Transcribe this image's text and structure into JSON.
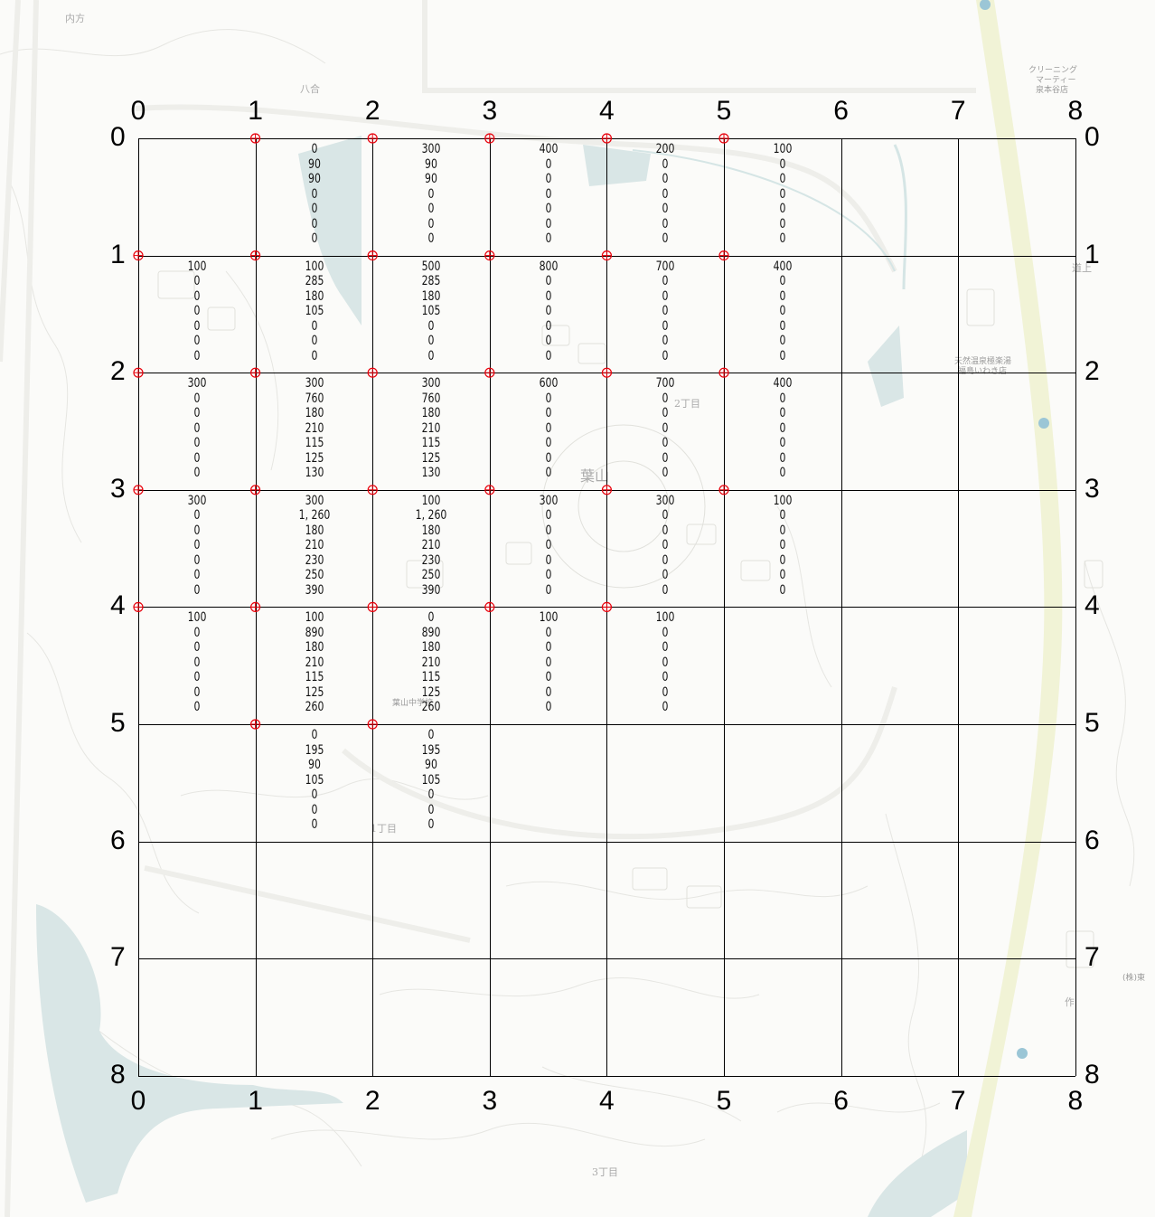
{
  "map_labels": {
    "place_uchikata": "内方",
    "place_hachiai": "八合",
    "place_hayama": "葉山",
    "chome_2": "2丁目",
    "chome_1": "1丁目",
    "chome_3": "3丁目",
    "shop_cleaning": [
      "クリーニング",
      "マーティー",
      "泉本谷店"
    ],
    "onsen": [
      "天然温泉極楽湯",
      "福島いわき店"
    ],
    "company": "(株)東",
    "place_right": "道上",
    "saku": "作",
    "school": "葉山中学校"
  },
  "axes": {
    "top": [
      "0",
      "1",
      "2",
      "3",
      "4",
      "5",
      "6",
      "7",
      "8"
    ],
    "bottom": [
      "0",
      "1",
      "2",
      "3",
      "4",
      "5",
      "6",
      "7",
      "8"
    ],
    "left": [
      "0",
      "1",
      "2",
      "3",
      "4",
      "5",
      "6",
      "7",
      "8"
    ],
    "right": [
      "0",
      "1",
      "2",
      "3",
      "4",
      "5",
      "6",
      "7",
      "8"
    ]
  },
  "grid": {
    "columns": 8,
    "rows": 8,
    "line_color": "#000000",
    "marker_color": "#e8000b",
    "markers": [
      [
        1,
        0
      ],
      [
        2,
        0
      ],
      [
        3,
        0
      ],
      [
        4,
        0
      ],
      [
        5,
        0
      ],
      [
        0,
        1
      ],
      [
        1,
        1
      ],
      [
        2,
        1
      ],
      [
        3,
        1
      ],
      [
        4,
        1
      ],
      [
        5,
        1
      ],
      [
        0,
        2
      ],
      [
        1,
        2
      ],
      [
        2,
        2
      ],
      [
        3,
        2
      ],
      [
        4,
        2
      ],
      [
        5,
        2
      ],
      [
        0,
        3
      ],
      [
        1,
        3
      ],
      [
        2,
        3
      ],
      [
        3,
        3
      ],
      [
        4,
        3
      ],
      [
        5,
        3
      ],
      [
        0,
        4
      ],
      [
        1,
        4
      ],
      [
        2,
        4
      ],
      [
        3,
        4
      ],
      [
        4,
        4
      ],
      [
        1,
        5
      ],
      [
        2,
        5
      ]
    ]
  },
  "cells": [
    {
      "col": 1,
      "row": 0,
      "values": [
        "0",
        "90",
        "90",
        "0",
        "0",
        "0",
        "0"
      ]
    },
    {
      "col": 2,
      "row": 0,
      "values": [
        "300",
        "90",
        "90",
        "0",
        "0",
        "0",
        "0"
      ]
    },
    {
      "col": 3,
      "row": 0,
      "values": [
        "400",
        "0",
        "0",
        "0",
        "0",
        "0",
        "0"
      ]
    },
    {
      "col": 4,
      "row": 0,
      "values": [
        "200",
        "0",
        "0",
        "0",
        "0",
        "0",
        "0"
      ]
    },
    {
      "col": 5,
      "row": 0,
      "values": [
        "100",
        "0",
        "0",
        "0",
        "0",
        "0",
        "0"
      ]
    },
    {
      "col": 0,
      "row": 1,
      "values": [
        "100",
        "0",
        "0",
        "0",
        "0",
        "0",
        "0"
      ]
    },
    {
      "col": 1,
      "row": 1,
      "values": [
        "100",
        "285",
        "180",
        "105",
        "0",
        "0",
        "0"
      ]
    },
    {
      "col": 2,
      "row": 1,
      "values": [
        "500",
        "285",
        "180",
        "105",
        "0",
        "0",
        "0"
      ]
    },
    {
      "col": 3,
      "row": 1,
      "values": [
        "800",
        "0",
        "0",
        "0",
        "0",
        "0",
        "0"
      ]
    },
    {
      "col": 4,
      "row": 1,
      "values": [
        "700",
        "0",
        "0",
        "0",
        "0",
        "0",
        "0"
      ]
    },
    {
      "col": 5,
      "row": 1,
      "values": [
        "400",
        "0",
        "0",
        "0",
        "0",
        "0",
        "0"
      ]
    },
    {
      "col": 0,
      "row": 2,
      "values": [
        "300",
        "0",
        "0",
        "0",
        "0",
        "0",
        "0"
      ]
    },
    {
      "col": 1,
      "row": 2,
      "values": [
        "300",
        "760",
        "180",
        "210",
        "115",
        "125",
        "130"
      ]
    },
    {
      "col": 2,
      "row": 2,
      "values": [
        "300",
        "760",
        "180",
        "210",
        "115",
        "125",
        "130"
      ]
    },
    {
      "col": 3,
      "row": 2,
      "values": [
        "600",
        "0",
        "0",
        "0",
        "0",
        "0",
        "0"
      ]
    },
    {
      "col": 4,
      "row": 2,
      "values": [
        "700",
        "0",
        "0",
        "0",
        "0",
        "0",
        "0"
      ]
    },
    {
      "col": 5,
      "row": 2,
      "values": [
        "400",
        "0",
        "0",
        "0",
        "0",
        "0",
        "0"
      ]
    },
    {
      "col": 0,
      "row": 3,
      "values": [
        "300",
        "0",
        "0",
        "0",
        "0",
        "0",
        "0"
      ]
    },
    {
      "col": 1,
      "row": 3,
      "values": [
        "300",
        "1, 260",
        "180",
        "210",
        "230",
        "250",
        "390"
      ]
    },
    {
      "col": 2,
      "row": 3,
      "values": [
        "100",
        "1, 260",
        "180",
        "210",
        "230",
        "250",
        "390"
      ]
    },
    {
      "col": 3,
      "row": 3,
      "values": [
        "300",
        "0",
        "0",
        "0",
        "0",
        "0",
        "0"
      ]
    },
    {
      "col": 4,
      "row": 3,
      "values": [
        "300",
        "0",
        "0",
        "0",
        "0",
        "0",
        "0"
      ]
    },
    {
      "col": 5,
      "row": 3,
      "values": [
        "100",
        "0",
        "0",
        "0",
        "0",
        "0",
        "0"
      ]
    },
    {
      "col": 0,
      "row": 4,
      "values": [
        "100",
        "0",
        "0",
        "0",
        "0",
        "0",
        "0"
      ]
    },
    {
      "col": 1,
      "row": 4,
      "values": [
        "100",
        "890",
        "180",
        "210",
        "115",
        "125",
        "260"
      ]
    },
    {
      "col": 2,
      "row": 4,
      "values": [
        "0",
        "890",
        "180",
        "210",
        "115",
        "125",
        "260"
      ]
    },
    {
      "col": 3,
      "row": 4,
      "values": [
        "100",
        "0",
        "0",
        "0",
        "0",
        "0",
        "0"
      ]
    },
    {
      "col": 4,
      "row": 4,
      "values": [
        "100",
        "0",
        "0",
        "0",
        "0",
        "0",
        "0"
      ]
    },
    {
      "col": 1,
      "row": 5,
      "values": [
        "0",
        "195",
        "90",
        "105",
        "0",
        "0",
        "0"
      ]
    },
    {
      "col": 2,
      "row": 5,
      "values": [
        "0",
        "195",
        "90",
        "105",
        "0",
        "0",
        "0"
      ]
    }
  ]
}
